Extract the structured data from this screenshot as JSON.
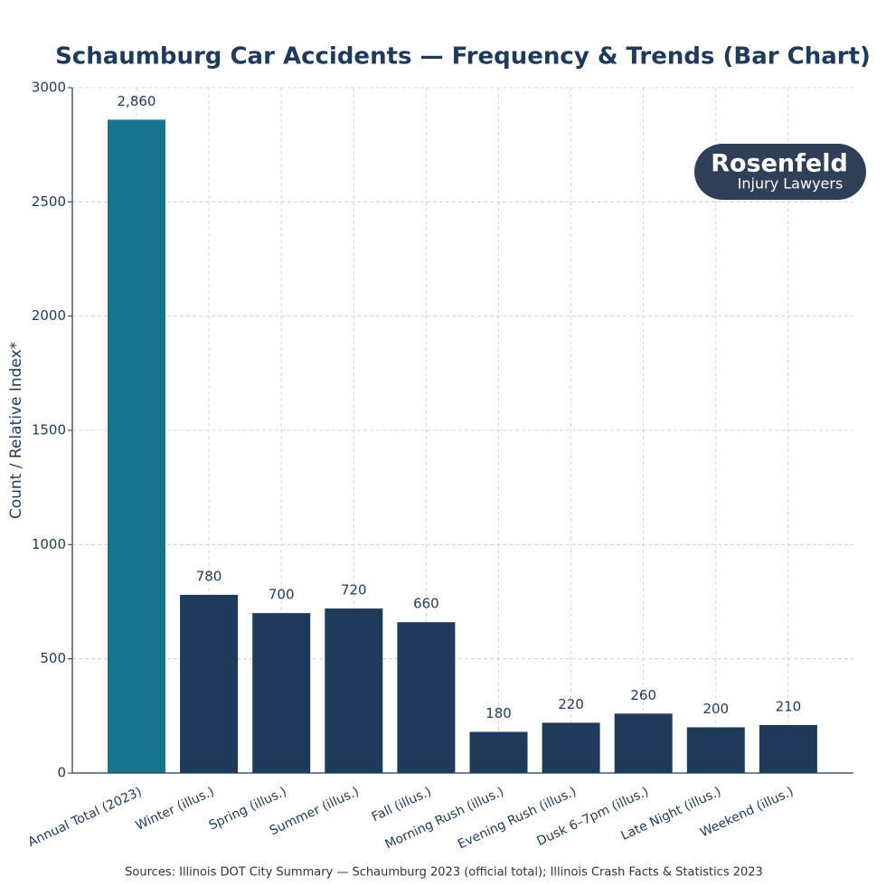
{
  "chart_data": {
    "type": "bar",
    "title": "Schaumburg Car Accidents — Frequency & Trends (Bar Chart)",
    "y_label": "Count / Relative Index*",
    "categories": [
      "Annual Total (2023)",
      "Winter (illus.)",
      "Spring (illus.)",
      "Summer (illus.)",
      "Fall (illus.)",
      "Morning Rush (illus.)",
      "Evening Rush (illus.)",
      "Dusk 6–7pm (illus.)",
      "Late Night (illus.)",
      "Weekend (illus.)"
    ],
    "values": [
      2860,
      780,
      700,
      720,
      660,
      180,
      220,
      260,
      200,
      210
    ],
    "value_labels": [
      "2,860",
      "780",
      "700",
      "720",
      "660",
      "180",
      "220",
      "260",
      "200",
      "210"
    ],
    "colors": [
      "#177590",
      "#1f3a5a",
      "#1f3a5a",
      "#1f3a5a",
      "#1f3a5a",
      "#1f3a5a",
      "#1f3a5a",
      "#1f3a5a",
      "#1f3a5a",
      "#1f3a5a"
    ],
    "ylim": [
      0,
      3000
    ],
    "yticks": [
      0,
      500,
      1000,
      1500,
      2000,
      2500,
      3000
    ],
    "grid": true,
    "source": "Sources: Illinois DOT City Summary — Schaumburg 2023 (official total); Illinois Crash Facts & Statistics 2023",
    "logo": {
      "name": "Rosenfeld",
      "tagline": "Injury Lawyers"
    }
  }
}
